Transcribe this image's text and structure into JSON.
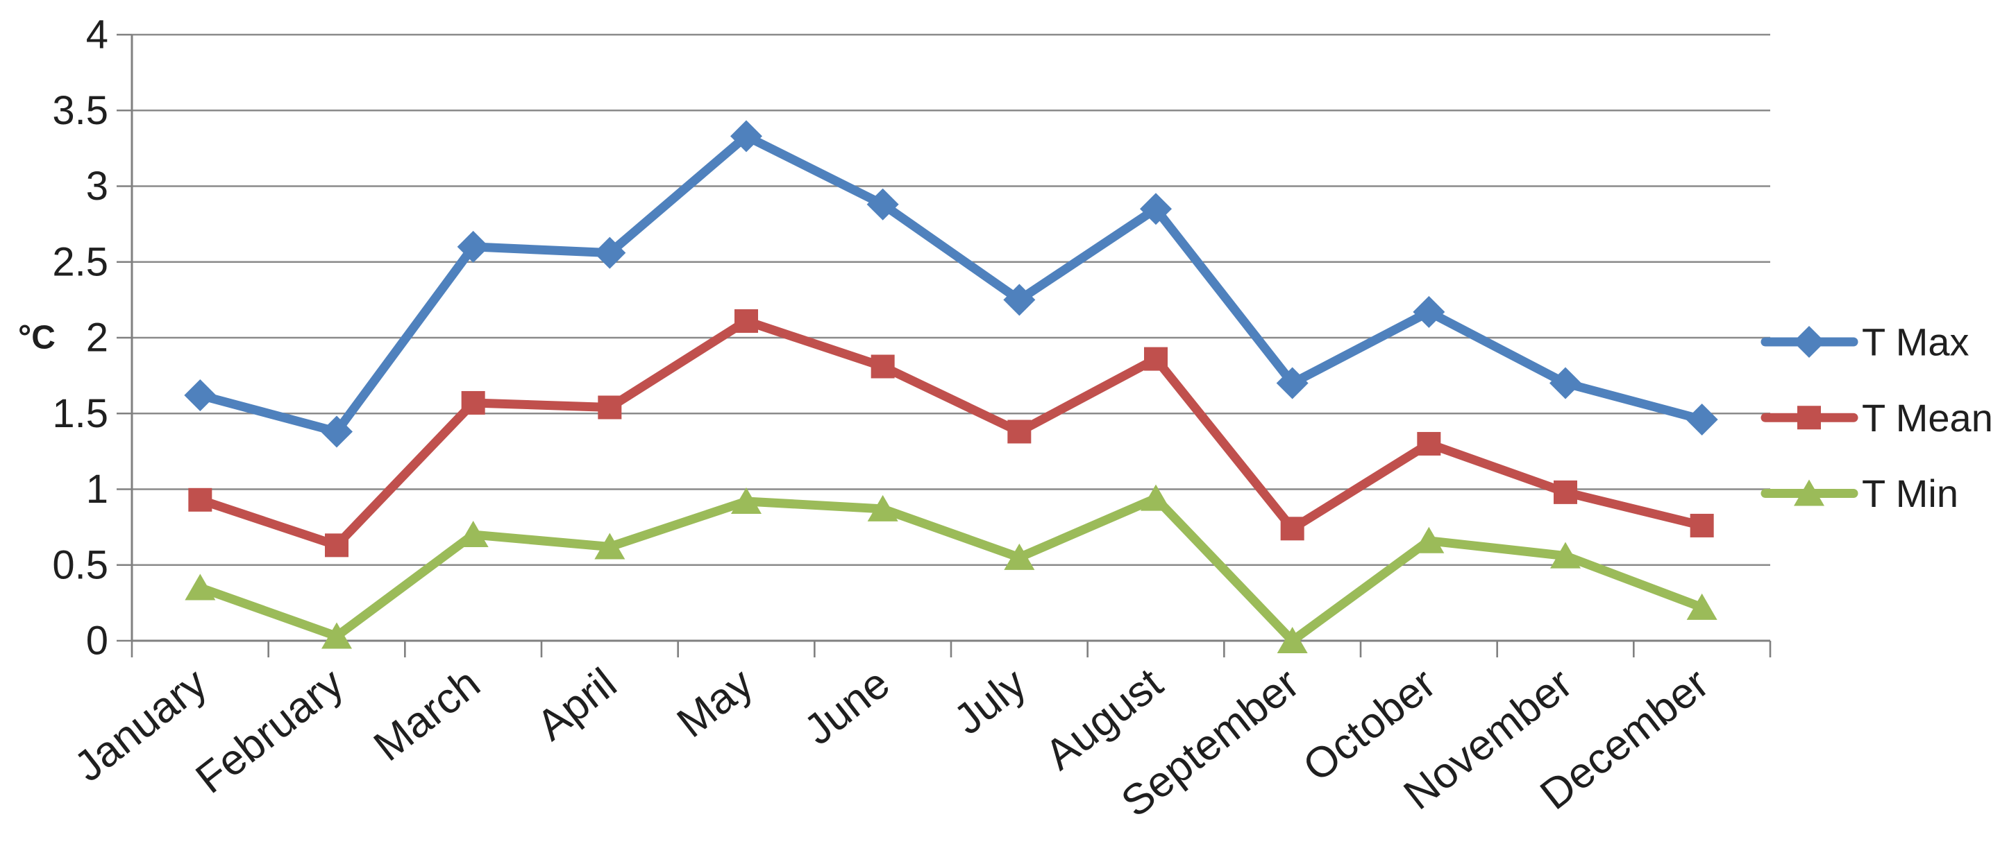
{
  "chart_data": {
    "type": "line",
    "title": "",
    "ylabel": "°C",
    "xlabel": "",
    "grid": true,
    "legend_position": "right",
    "categories": [
      "January",
      "February",
      "March",
      "April",
      "May",
      "June",
      "July",
      "August",
      "September",
      "October",
      "November",
      "December"
    ],
    "series": [
      {
        "name": "T Max",
        "marker": "diamond",
        "color": "#4F81BD",
        "values": [
          1.62,
          1.38,
          2.6,
          2.56,
          3.33,
          2.88,
          2.25,
          2.85,
          1.7,
          2.17,
          1.7,
          1.46
        ]
      },
      {
        "name": "T Mean",
        "marker": "square",
        "color": "#C0504D",
        "values": [
          0.93,
          0.63,
          1.57,
          1.54,
          2.11,
          1.81,
          1.38,
          1.86,
          0.74,
          1.3,
          0.98,
          0.76
        ]
      },
      {
        "name": "T Min",
        "marker": "triangle",
        "color": "#9BBB59",
        "values": [
          0.35,
          0.03,
          0.7,
          0.62,
          0.92,
          0.87,
          0.55,
          0.94,
          0.0,
          0.66,
          0.56,
          0.22
        ]
      }
    ],
    "y_axis": {
      "min": 0,
      "max": 4,
      "step": 0.5,
      "tick_labels_top_to_bottom": [
        "4",
        "3.5",
        "3",
        "2.5",
        "2",
        "1.5",
        "1",
        "0.5",
        "0"
      ]
    },
    "colors": {
      "gridline": "#8A8A8A",
      "axis": "#808080",
      "text": "#1f1f1f",
      "background": "#ffffff"
    }
  }
}
